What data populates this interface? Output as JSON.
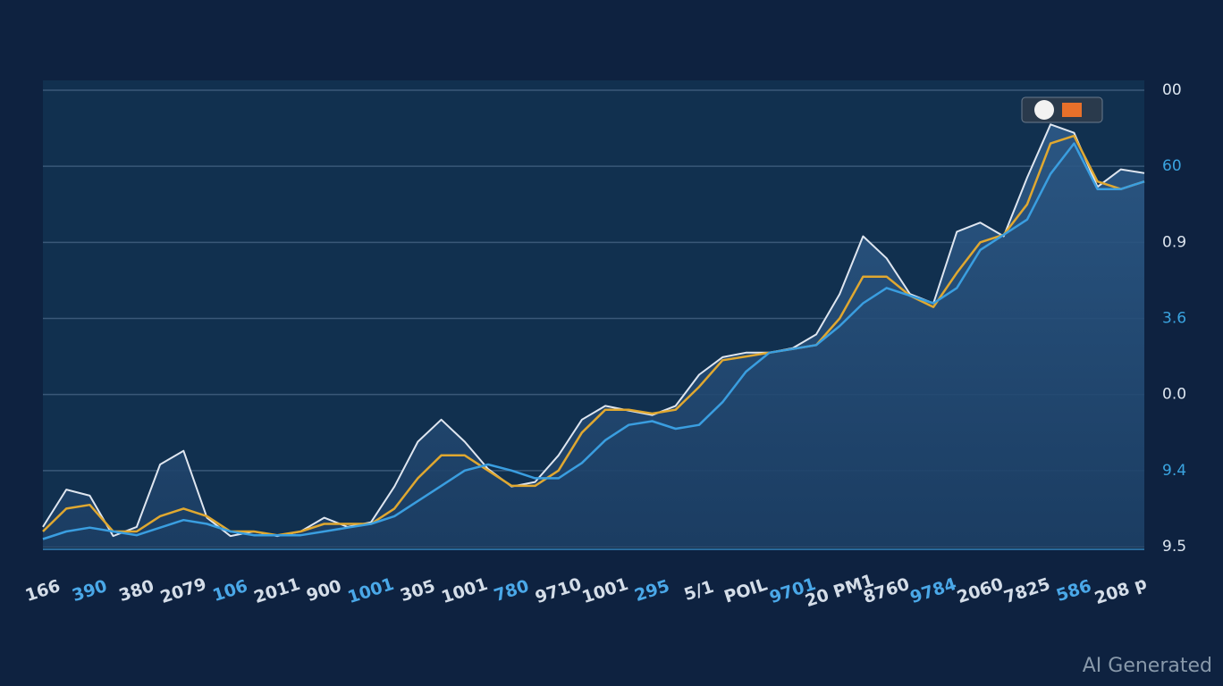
{
  "chart_data": {
    "type": "line",
    "categories": [
      "166",
      null,
      "390",
      null,
      "380",
      null,
      "2079",
      null,
      "106",
      null,
      "2011",
      null,
      "900",
      null,
      "1001",
      null,
      "305",
      null,
      "1001",
      null,
      "780",
      null,
      "9710",
      null,
      "1001",
      null,
      "295",
      null,
      "5/1",
      null,
      "POIL",
      null,
      "9701",
      null,
      "20 PM1",
      null,
      "8760",
      null,
      "9784",
      null,
      "2060",
      null,
      "7825",
      null,
      "586",
      null,
      "208 p",
      null
    ],
    "series": [
      {
        "color": "#dfe6f0",
        "values": [
          0.26,
          0.75,
          0.67,
          0.14,
          0.26,
          1.08,
          1.26,
          0.38,
          0.14,
          0.2,
          0.14,
          0.2,
          0.38,
          0.26,
          0.32,
          0.79,
          1.38,
          1.67,
          1.38,
          1.02,
          0.79,
          0.85,
          1.2,
          1.67,
          1.85,
          1.79,
          1.73,
          1.85,
          2.26,
          2.49,
          2.55,
          2.55,
          2.61,
          2.79,
          3.32,
          4.08,
          3.79,
          3.32,
          3.2,
          4.14,
          4.26,
          4.08,
          4.85,
          5.55,
          5.44,
          4.73,
          4.96,
          4.91
        ]
      },
      {
        "color": "#e0a830",
        "values": [
          0.2,
          0.5,
          0.55,
          0.2,
          0.2,
          0.4,
          0.5,
          0.4,
          0.2,
          0.2,
          0.15,
          0.2,
          0.3,
          0.3,
          0.3,
          0.5,
          0.9,
          1.2,
          1.2,
          1.0,
          0.8,
          0.8,
          1.0,
          1.5,
          1.8,
          1.8,
          1.75,
          1.8,
          2.1,
          2.45,
          2.5,
          2.55,
          2.6,
          2.65,
          3.0,
          3.55,
          3.55,
          3.3,
          3.15,
          3.6,
          4.0,
          4.1,
          4.5,
          5.3,
          5.4,
          4.8,
          4.7,
          4.8
        ]
      },
      {
        "color": "#3a9ee0",
        "values": [
          0.1,
          0.2,
          0.25,
          0.2,
          0.15,
          0.25,
          0.35,
          0.3,
          0.2,
          0.15,
          0.15,
          0.15,
          0.2,
          0.25,
          0.3,
          0.4,
          0.6,
          0.8,
          1.0,
          1.08,
          1.0,
          0.9,
          0.9,
          1.1,
          1.4,
          1.6,
          1.65,
          1.55,
          1.6,
          1.9,
          2.3,
          2.55,
          2.6,
          2.65,
          2.9,
          3.2,
          3.4,
          3.3,
          3.2,
          3.4,
          3.9,
          4.1,
          4.3,
          4.9,
          5.3,
          4.7,
          4.7,
          4.8
        ]
      }
    ],
    "ylim": [
      0,
      6
    ],
    "yticks": [
      {
        "value": 0,
        "label": "9.5"
      },
      {
        "value": 1,
        "label": "9.4"
      },
      {
        "value": 2,
        "label": "0.0"
      },
      {
        "value": 3,
        "label": "3.6"
      },
      {
        "value": 4,
        "label": "0.9"
      },
      {
        "value": 5,
        "label": "60"
      },
      {
        "value": 6,
        "label": "00"
      }
    ],
    "grid": true,
    "annotation": "AI Generated"
  }
}
